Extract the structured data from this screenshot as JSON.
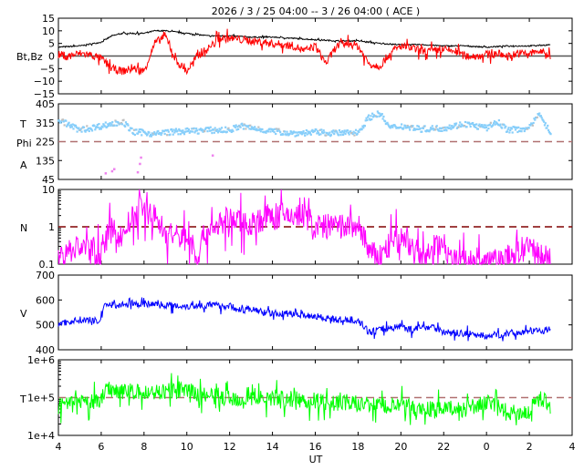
{
  "chart_data": [
    {
      "type": "line",
      "title": "2026 /  3 / 25   04:00 -- 3 / 26   04:00 ( ACE )",
      "xlabel": "UT",
      "x_tick_labels": [
        "4",
        "6",
        "8",
        "10",
        "12",
        "14",
        "16",
        "18",
        "20",
        "22",
        "0",
        "2",
        "4"
      ],
      "xlim_hours_from_start": [
        0,
        24
      ],
      "panels": [
        {
          "id": "mag",
          "ylabels": [
            "Bt,Bz"
          ],
          "scale": "linear",
          "ylim": [
            -15,
            15
          ],
          "yticks": [
            15,
            10,
            5,
            0,
            -5,
            -10,
            -15
          ],
          "ytick_labels": [
            "15",
            "10",
            "5",
            "0",
            "−5",
            "−10",
            "−15"
          ],
          "reference": {
            "value": 0,
            "style": "solid",
            "color": "#555555"
          },
          "series": [
            {
              "name": "Bt",
              "color": "#000000",
              "x": [
                4,
                5,
                6,
                6.5,
                7,
                8,
                8.5,
                9,
                10,
                11,
                12,
                13,
                14,
                15,
                16,
                17,
                18,
                19,
                20,
                21,
                22,
                23,
                24,
                25,
                26,
                27
              ],
              "y": [
                3.5,
                4,
                5.5,
                8,
                9,
                9,
                10,
                10,
                9,
                8,
                8,
                7.5,
                7.5,
                7,
                6.5,
                6,
                6,
                5,
                4.5,
                4.5,
                4,
                4,
                3.5,
                4,
                4,
                4.5
              ]
            },
            {
              "name": "Bz",
              "color": "#ff0000",
              "x": [
                4,
                4.5,
                5,
                5.5,
                6,
                6.5,
                7,
                7.5,
                8,
                8.5,
                9,
                9.5,
                10,
                10.5,
                11,
                11.5,
                12,
                13,
                14,
                15,
                15.5,
                16,
                16.5,
                17,
                17.5,
                18,
                18.5,
                19,
                19.5,
                20,
                20.5,
                21,
                21.5,
                22,
                22.5,
                23,
                23.5,
                24,
                24.5,
                25,
                25.5,
                26,
                26.5,
                27
              ],
              "y": [
                0.5,
                0,
                1,
                0.5,
                -1,
                -5,
                -6,
                -5,
                -6,
                5,
                8,
                -2,
                -6,
                0,
                3,
                7,
                7,
                6,
                5,
                4,
                2,
                4,
                -3,
                4,
                5,
                4,
                -3,
                -4,
                1,
                4,
                3,
                2,
                2,
                2.5,
                2,
                0,
                0,
                0.5,
                1,
                0,
                1,
                1,
                2,
                0
              ]
            }
          ]
        },
        {
          "id": "phi",
          "ylabels": [
            "T",
            "Phi",
            "A"
          ],
          "scale": "linear",
          "ylim": [
            45,
            405
          ],
          "yticks": [
            405,
            315,
            225,
            135,
            45
          ],
          "ytick_labels": [
            "405",
            "315",
            "225",
            "135",
            "45"
          ],
          "reference": {
            "value": 225,
            "style": "dashed",
            "color": "#b07070"
          },
          "series": [
            {
              "name": "Phi",
              "color": "#87cefa",
              "kind": "points",
              "x": [
                4,
                5,
                6,
                7,
                7.5,
                8,
                8.5,
                9,
                10,
                11,
                12,
                12.5,
                13,
                14,
                15,
                16,
                17,
                18,
                18.5,
                19,
                19.5,
                20,
                21,
                22,
                23,
                24,
                24.5,
                25,
                26,
                26.5,
                27
              ],
              "y": [
                330,
                280,
                300,
                320,
                270,
                270,
                260,
                270,
                275,
                280,
                280,
                300,
                290,
                275,
                265,
                270,
                265,
                270,
                340,
                360,
                290,
                300,
                285,
                290,
                310,
                290,
                320,
                280,
                290,
                360,
                260
              ]
            },
            {
              "name": "Phi away",
              "color": "#ee82ee",
              "kind": "points",
              "x": [
                6.2,
                6.5,
                6.6,
                7.7,
                7.8,
                7.85,
                11.2
              ],
              "y": [
                75,
                85,
                95,
                80,
                120,
                150,
                160
              ]
            }
          ]
        },
        {
          "id": "density",
          "ylabels": [
            "N"
          ],
          "scale": "log",
          "ylim": [
            0.1,
            10
          ],
          "yticks": [
            10,
            1,
            0.1
          ],
          "ytick_labels": [
            "10",
            "1",
            "0.1"
          ],
          "reference": {
            "value": 1,
            "style": "dashed",
            "color": "#800000"
          },
          "series": [
            {
              "name": "N",
              "color": "#ff00ff",
              "x": [
                4,
                5,
                6,
                6.5,
                7,
                8,
                9,
                10,
                10.5,
                11,
                12,
                13,
                14,
                15,
                15.5,
                16,
                17,
                18,
                18.5,
                19,
                20,
                20.5,
                21,
                22,
                22.5,
                23,
                24,
                25,
                26,
                27
              ],
              "y": [
                0.15,
                0.3,
                0.2,
                0.8,
                0.5,
                3,
                0.6,
                0.5,
                0.12,
                0.8,
                1.5,
                1.2,
                2,
                2,
                2,
                1,
                1,
                1,
                0.2,
                0.15,
                0.5,
                0.3,
                0.12,
                0.35,
                0.12,
                0.12,
                0.1,
                0.15,
                0.25,
                0.12
              ]
            }
          ]
        },
        {
          "id": "speed",
          "ylabels": [
            "V"
          ],
          "scale": "linear",
          "ylim": [
            400,
            700
          ],
          "yticks": [
            700,
            600,
            500,
            400
          ],
          "ytick_labels": [
            "700",
            "600",
            "500",
            "400"
          ],
          "series": [
            {
              "name": "V",
              "color": "#0000ff",
              "x": [
                4,
                5,
                6,
                6.1,
                7,
                8,
                9,
                10,
                11,
                12,
                12.7,
                12.8,
                14,
                15,
                16,
                17,
                18,
                18.5,
                19,
                20,
                20.5,
                21,
                21.5,
                22,
                23,
                24,
                25,
                26,
                27
              ],
              "y": [
                505,
                520,
                515,
                580,
                580,
                585,
                580,
                575,
                580,
                575,
                555,
                565,
                545,
                545,
                535,
                520,
                520,
                470,
                480,
                495,
                480,
                490,
                495,
                470,
                465,
                455,
                465,
                475,
                480
              ]
            }
          ]
        },
        {
          "id": "temperature",
          "ylabels": [
            "T"
          ],
          "scale": "log",
          "ylim": [
            10000,
            1000000
          ],
          "yticks": [
            1000000,
            100000,
            10000
          ],
          "ytick_labels": [
            "1e+6",
            "1e+5",
            "1e+4"
          ],
          "reference": {
            "value": 100000,
            "style": "dashed",
            "color": "#b07070"
          },
          "series": [
            {
              "name": "T",
              "color": "#00ff00",
              "x": [
                4,
                5,
                6,
                6.2,
                7,
                8,
                9,
                10,
                11,
                12,
                12.7,
                14,
                15,
                16,
                17,
                18,
                19,
                20,
                21,
                22,
                23,
                24,
                25,
                26,
                26.5,
                27
              ],
              "y": [
                60000,
                70000,
                80000,
                180000,
                150000,
                130000,
                150000,
                150000,
                110000,
                95000,
                95000,
                100000,
                90000,
                80000,
                70000,
                70000,
                60000,
                60000,
                50000,
                50000,
                50000,
                70000,
                40000,
                40000,
                100000,
                60000
              ]
            }
          ]
        }
      ]
    }
  ]
}
